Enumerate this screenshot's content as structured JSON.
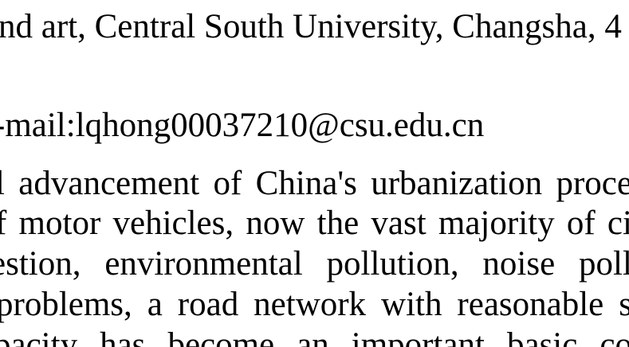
{
  "document": {
    "affiliation_line": "nd art, Central South University, Changsha, 4",
    "email_line": "-mail:lqhong00037210@csu.edu.cn",
    "body_lines": [
      [
        "l",
        "advancement",
        "of",
        "China's",
        "urbanization",
        "proce"
      ],
      [
        "f",
        "motor",
        "vehicles,",
        "now",
        "the",
        "vast",
        "majority",
        "of",
        "ci"
      ],
      [
        "estion,",
        "environmental",
        "pollution,",
        "noise",
        "poll"
      ],
      [
        "problems,",
        "a",
        "road",
        "network",
        "with",
        "reasonable",
        "s"
      ],
      [
        "pacity",
        "has",
        "become",
        "an",
        "important",
        "basic",
        "co"
      ]
    ]
  }
}
